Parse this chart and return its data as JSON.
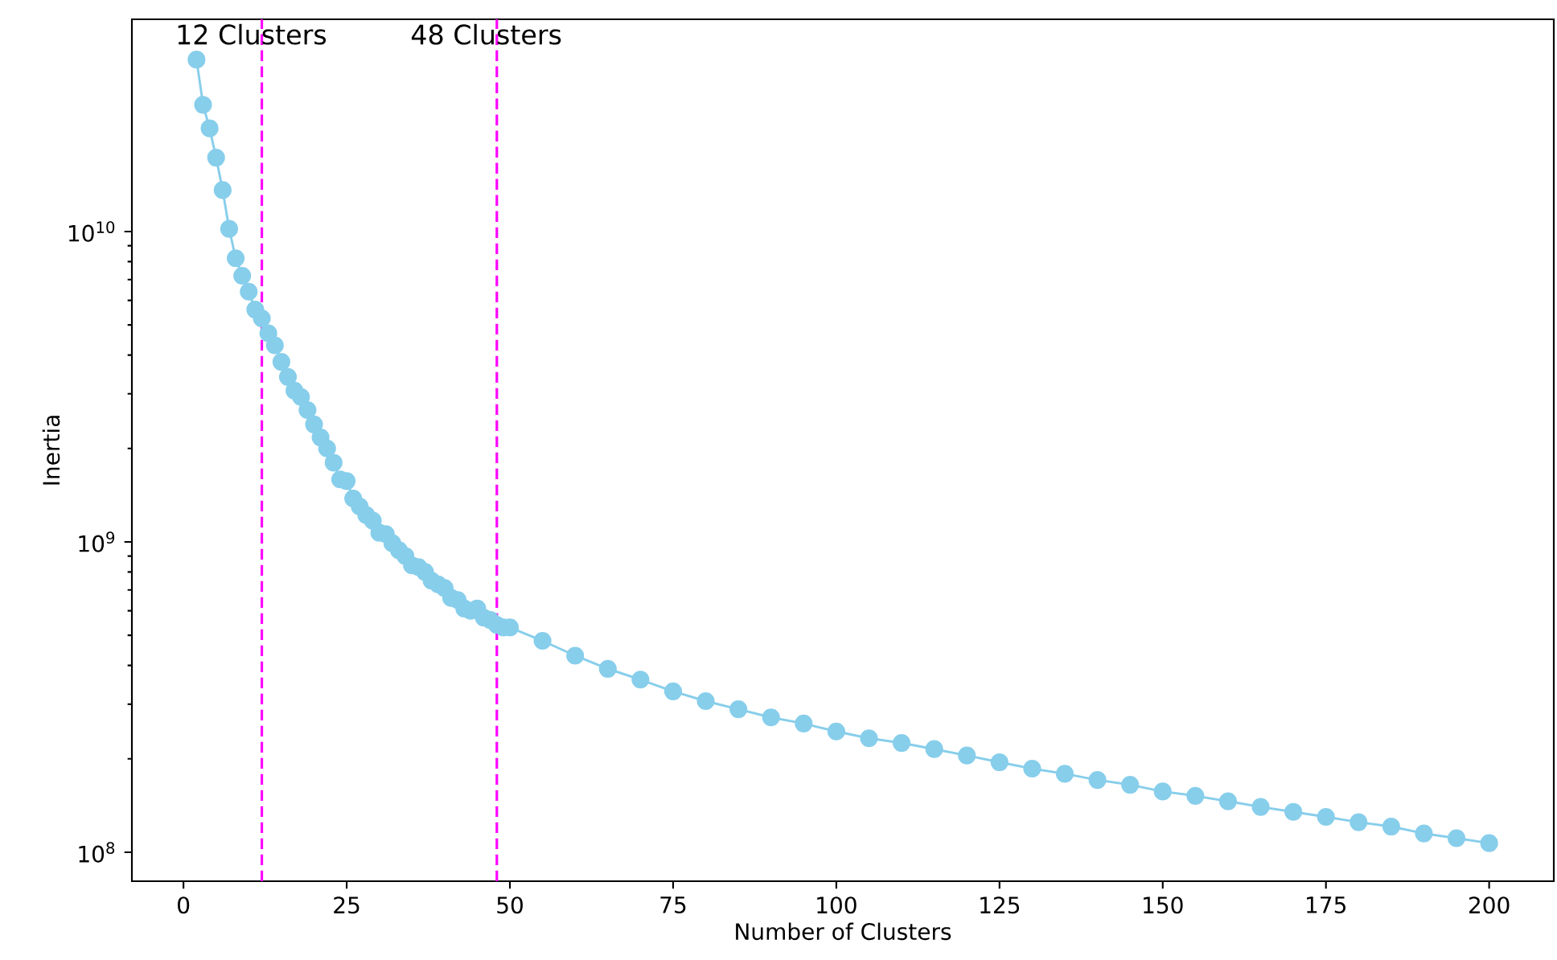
{
  "chart_data": {
    "type": "line",
    "xlabel": "Number of Clusters",
    "ylabel": "Inertia",
    "series": [
      {
        "color": "#87ceeb",
        "marker": "circle",
        "x": [
          2,
          3,
          4,
          5,
          6,
          7,
          8,
          9,
          10,
          11,
          12,
          13,
          14,
          15,
          16,
          17,
          18,
          19,
          20,
          21,
          22,
          23,
          24,
          25,
          26,
          27,
          28,
          29,
          30,
          31,
          32,
          33,
          34,
          35,
          36,
          37,
          38,
          39,
          40,
          41,
          42,
          43,
          44,
          45,
          46,
          47,
          48,
          49,
          50,
          55,
          60,
          65,
          70,
          75,
          80,
          85,
          90,
          95,
          100,
          105,
          110,
          115,
          120,
          125,
          130,
          135,
          140,
          145,
          150,
          155,
          160,
          165,
          170,
          175,
          180,
          185,
          190,
          195,
          200
        ],
        "values": [
          35800000000.0,
          25600000000.0,
          21500000000.0,
          17300000000.0,
          13600000000.0,
          10200000000.0,
          8200000000.0,
          7200000000.0,
          6400000000.0,
          5600000000.0,
          5250000000.0,
          4700000000.0,
          4300000000.0,
          3800000000.0,
          3400000000.0,
          3070000000.0,
          2930000000.0,
          2660000000.0,
          2390000000.0,
          2170000000.0,
          2000000000.0,
          1800000000.0,
          1590000000.0,
          1570000000.0,
          1380000000.0,
          1300000000.0,
          1220000000.0,
          1170000000.0,
          1070000000.0,
          1060000000.0,
          990000000.0,
          940000000.0,
          900000000.0,
          840000000.0,
          830000000.0,
          800000000.0,
          750000000.0,
          730000000.0,
          710000000.0,
          660000000.0,
          650000000.0,
          610000000.0,
          600000000.0,
          610000000.0,
          570000000.0,
          560000000.0,
          540000000.0,
          530000000.0,
          530000000.0,
          480000000.0,
          430000000.0,
          390000000.0,
          360000000.0,
          330000000.0,
          307000000.0,
          289000000.0,
          272000000.0,
          260000000.0,
          245000000.0,
          233000000.0,
          225000000.0,
          215000000.0,
          205000000.0,
          195000000.0,
          186000000.0,
          179000000.0,
          171000000.0,
          165000000.0,
          157000000.0,
          152000000.0,
          146000000.0,
          140000000.0,
          135000000.0,
          130000000.0,
          125000000.0,
          121000000.0,
          115000000.0,
          111000000.0,
          107000000.0
        ]
      }
    ],
    "log": "y",
    "xlim": [
      -7.9,
      209.9
    ],
    "ylim": [
      80700000.0,
      48300000000.0
    ],
    "xticks": [
      0,
      25,
      50,
      75,
      100,
      125,
      150,
      175,
      200
    ],
    "yticks": [
      {
        "value": 100000000.0,
        "label": "10$^{8}$"
      },
      {
        "value": 1000000000.0,
        "label": "10$^{9}$"
      },
      {
        "value": 10000000000.0,
        "label": "10$^{10}$"
      }
    ],
    "ref_lines": [
      {
        "axis": "x",
        "value": 12,
        "label": "12 Clusters",
        "color": "#ff00ff",
        "line_style": "dashed"
      },
      {
        "axis": "x",
        "value": 48,
        "label": "48 Clusters",
        "color": "#ff00ff",
        "line_style": "dashed"
      }
    ],
    "grid": false
  }
}
